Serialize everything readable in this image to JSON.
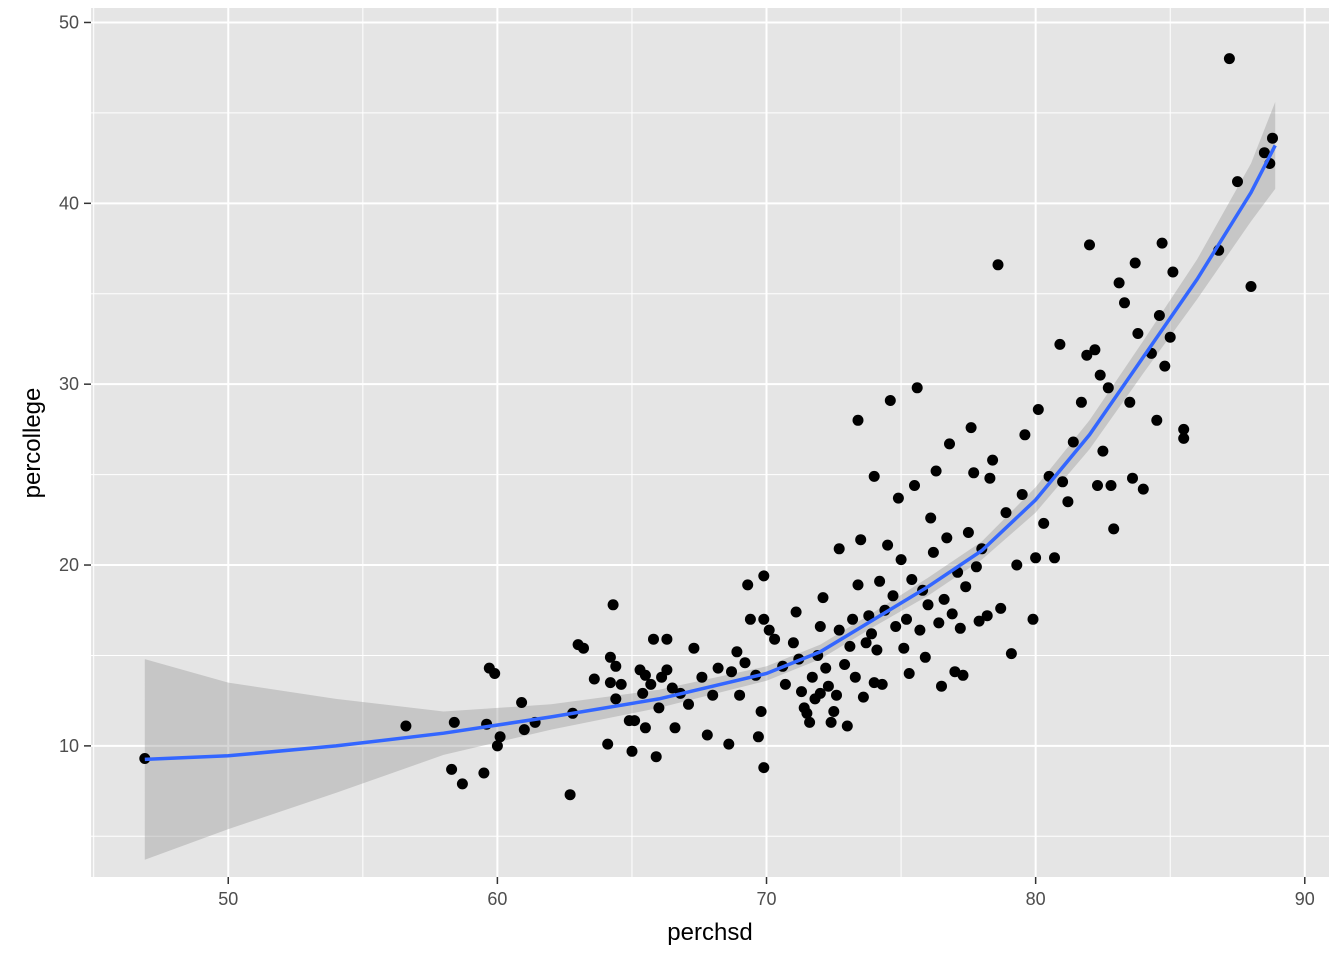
{
  "chart_data": {
    "type": "scatter",
    "title": "",
    "xlabel": "perchsd",
    "ylabel": "percollege",
    "xlim": [
      44.9,
      90.9
    ],
    "ylim": [
      2.75,
      50.8
    ],
    "x_ticks": [
      50,
      60,
      70,
      80,
      90
    ],
    "y_ticks": [
      10,
      20,
      30,
      40,
      50
    ],
    "x_tick_labels": [
      "50",
      "60",
      "70",
      "80",
      "90"
    ],
    "y_tick_labels": [
      "10",
      "20",
      "30",
      "40",
      "50"
    ],
    "grid": true,
    "legend": "none",
    "colors": {
      "panel": "#e5e5e5",
      "grid": "#ffffff",
      "points": "#000000",
      "smooth_line": "#3366ff",
      "ribbon": "#999999"
    },
    "points": [
      [
        46.9,
        9.3
      ],
      [
        56.6,
        11.1
      ],
      [
        58.3,
        8.7
      ],
      [
        58.4,
        11.3
      ],
      [
        58.7,
        7.9
      ],
      [
        59.5,
        8.5
      ],
      [
        59.6,
        11.2
      ],
      [
        59.7,
        14.3
      ],
      [
        59.9,
        14.0
      ],
      [
        60.0,
        10.0
      ],
      [
        60.1,
        10.5
      ],
      [
        60.9,
        12.4
      ],
      [
        61.0,
        10.9
      ],
      [
        61.4,
        11.3
      ],
      [
        62.7,
        7.3
      ],
      [
        62.8,
        11.8
      ],
      [
        63.0,
        15.6
      ],
      [
        63.2,
        15.4
      ],
      [
        63.6,
        13.7
      ],
      [
        64.1,
        10.1
      ],
      [
        64.2,
        13.5
      ],
      [
        64.2,
        14.9
      ],
      [
        64.3,
        17.8
      ],
      [
        64.4,
        12.6
      ],
      [
        64.4,
        14.4
      ],
      [
        64.6,
        13.4
      ],
      [
        64.9,
        11.4
      ],
      [
        65.0,
        9.7
      ],
      [
        65.1,
        11.4
      ],
      [
        65.3,
        14.2
      ],
      [
        65.4,
        12.9
      ],
      [
        65.5,
        11.0
      ],
      [
        65.5,
        13.9
      ],
      [
        65.7,
        13.4
      ],
      [
        65.8,
        15.9
      ],
      [
        65.9,
        9.4
      ],
      [
        66.0,
        12.1
      ],
      [
        66.1,
        13.8
      ],
      [
        66.3,
        14.2
      ],
      [
        66.3,
        15.9
      ],
      [
        66.5,
        13.2
      ],
      [
        66.6,
        11.0
      ],
      [
        66.8,
        12.9
      ],
      [
        67.1,
        12.3
      ],
      [
        67.3,
        15.4
      ],
      [
        67.6,
        13.8
      ],
      [
        67.8,
        10.6
      ],
      [
        68.0,
        12.8
      ],
      [
        68.2,
        14.3
      ],
      [
        68.6,
        10.1
      ],
      [
        68.7,
        14.1
      ],
      [
        68.9,
        15.2
      ],
      [
        69.0,
        12.8
      ],
      [
        69.2,
        14.6
      ],
      [
        69.3,
        18.9
      ],
      [
        69.4,
        17.0
      ],
      [
        69.6,
        13.9
      ],
      [
        69.7,
        10.5
      ],
      [
        69.8,
        11.9
      ],
      [
        69.9,
        8.8
      ],
      [
        69.9,
        17.0
      ],
      [
        69.9,
        19.4
      ],
      [
        70.1,
        16.4
      ],
      [
        70.3,
        15.9
      ],
      [
        70.6,
        14.4
      ],
      [
        70.7,
        13.4
      ],
      [
        71.0,
        15.7
      ],
      [
        71.1,
        17.4
      ],
      [
        71.2,
        14.8
      ],
      [
        71.3,
        13.0
      ],
      [
        71.4,
        12.1
      ],
      [
        71.5,
        11.8
      ],
      [
        71.6,
        11.3
      ],
      [
        71.7,
        13.8
      ],
      [
        71.8,
        12.6
      ],
      [
        71.9,
        15.0
      ],
      [
        72.0,
        12.9
      ],
      [
        72.0,
        16.6
      ],
      [
        72.1,
        18.2
      ],
      [
        72.2,
        14.3
      ],
      [
        72.3,
        13.3
      ],
      [
        72.4,
        11.3
      ],
      [
        72.5,
        11.9
      ],
      [
        72.6,
        12.8
      ],
      [
        72.7,
        16.4
      ],
      [
        72.7,
        20.9
      ],
      [
        72.9,
        14.5
      ],
      [
        73.0,
        11.1
      ],
      [
        73.1,
        15.5
      ],
      [
        73.2,
        17.0
      ],
      [
        73.3,
        13.8
      ],
      [
        73.4,
        18.9
      ],
      [
        73.4,
        28.0
      ],
      [
        73.5,
        21.4
      ],
      [
        73.6,
        12.7
      ],
      [
        73.7,
        15.7
      ],
      [
        73.8,
        17.2
      ],
      [
        73.9,
        16.2
      ],
      [
        74.0,
        13.5
      ],
      [
        74.0,
        24.9
      ],
      [
        74.1,
        15.3
      ],
      [
        74.2,
        19.1
      ],
      [
        74.3,
        13.4
      ],
      [
        74.4,
        17.5
      ],
      [
        74.5,
        21.1
      ],
      [
        74.6,
        29.1
      ],
      [
        74.7,
        18.3
      ],
      [
        74.8,
        16.6
      ],
      [
        74.9,
        23.7
      ],
      [
        75.0,
        20.3
      ],
      [
        75.1,
        15.4
      ],
      [
        75.2,
        17.0
      ],
      [
        75.3,
        14.0
      ],
      [
        75.4,
        19.2
      ],
      [
        75.5,
        24.4
      ],
      [
        75.6,
        29.8
      ],
      [
        75.7,
        16.4
      ],
      [
        75.8,
        18.6
      ],
      [
        75.9,
        14.9
      ],
      [
        76.0,
        17.8
      ],
      [
        76.1,
        22.6
      ],
      [
        76.2,
        20.7
      ],
      [
        76.3,
        25.2
      ],
      [
        76.4,
        16.8
      ],
      [
        76.5,
        13.3
      ],
      [
        76.6,
        18.1
      ],
      [
        76.7,
        21.5
      ],
      [
        76.8,
        26.7
      ],
      [
        76.9,
        17.3
      ],
      [
        77.0,
        14.1
      ],
      [
        77.1,
        19.6
      ],
      [
        77.2,
        16.5
      ],
      [
        77.3,
        13.9
      ],
      [
        77.4,
        18.8
      ],
      [
        77.5,
        21.8
      ],
      [
        77.6,
        27.6
      ],
      [
        77.7,
        25.1
      ],
      [
        77.8,
        19.9
      ],
      [
        77.9,
        16.9
      ],
      [
        78.0,
        20.9
      ],
      [
        78.2,
        17.2
      ],
      [
        78.3,
        24.8
      ],
      [
        78.4,
        25.8
      ],
      [
        78.6,
        36.6
      ],
      [
        78.7,
        17.6
      ],
      [
        78.9,
        22.9
      ],
      [
        79.1,
        15.1
      ],
      [
        79.3,
        20.0
      ],
      [
        79.5,
        23.9
      ],
      [
        79.6,
        27.2
      ],
      [
        79.9,
        17.0
      ],
      [
        80.0,
        20.4
      ],
      [
        80.1,
        28.6
      ],
      [
        80.3,
        22.3
      ],
      [
        80.5,
        24.9
      ],
      [
        80.7,
        20.4
      ],
      [
        80.9,
        32.2
      ],
      [
        81.0,
        24.6
      ],
      [
        81.2,
        23.5
      ],
      [
        81.4,
        26.8
      ],
      [
        81.7,
        29.0
      ],
      [
        81.9,
        31.6
      ],
      [
        82.0,
        37.7
      ],
      [
        82.2,
        31.9
      ],
      [
        82.3,
        24.4
      ],
      [
        82.4,
        30.5
      ],
      [
        82.5,
        26.3
      ],
      [
        82.7,
        29.8
      ],
      [
        82.8,
        24.4
      ],
      [
        82.9,
        22.0
      ],
      [
        83.1,
        35.6
      ],
      [
        83.3,
        34.5
      ],
      [
        83.5,
        29.0
      ],
      [
        83.6,
        24.8
      ],
      [
        83.7,
        36.7
      ],
      [
        83.8,
        32.8
      ],
      [
        84.0,
        24.2
      ],
      [
        84.3,
        31.7
      ],
      [
        84.5,
        28.0
      ],
      [
        84.6,
        33.8
      ],
      [
        84.7,
        37.8
      ],
      [
        84.8,
        31.0
      ],
      [
        85.0,
        32.6
      ],
      [
        85.1,
        36.2
      ],
      [
        85.5,
        27.0
      ],
      [
        85.5,
        27.5
      ],
      [
        86.8,
        37.4
      ],
      [
        87.2,
        48.0
      ],
      [
        87.5,
        41.2
      ],
      [
        88.0,
        35.4
      ],
      [
        88.5,
        42.8
      ],
      [
        88.7,
        42.2
      ],
      [
        88.8,
        43.6
      ]
    ],
    "smooth": {
      "method": "loess",
      "fit": [
        [
          46.9,
          9.25
        ],
        [
          50,
          9.45
        ],
        [
          54,
          10.0
        ],
        [
          58,
          10.7
        ],
        [
          62,
          11.6
        ],
        [
          66,
          12.6
        ],
        [
          70,
          14.0
        ],
        [
          72,
          15.2
        ],
        [
          74,
          17.0
        ],
        [
          76,
          18.8
        ],
        [
          78,
          20.8
        ],
        [
          80,
          23.6
        ],
        [
          82,
          27.2
        ],
        [
          84,
          31.5
        ],
        [
          86,
          35.8
        ],
        [
          88,
          40.6
        ],
        [
          88.9,
          43.2
        ]
      ],
      "lower": [
        [
          46.9,
          3.7
        ],
        [
          50,
          5.4
        ],
        [
          54,
          7.4
        ],
        [
          58,
          9.5
        ],
        [
          62,
          10.9
        ],
        [
          66,
          12.1
        ],
        [
          70,
          13.6
        ],
        [
          72,
          14.8
        ],
        [
          74,
          16.6
        ],
        [
          76,
          18.3
        ],
        [
          78,
          20.3
        ],
        [
          80,
          22.9
        ],
        [
          82,
          26.4
        ],
        [
          84,
          30.6
        ],
        [
          86,
          34.7
        ],
        [
          88,
          39.0
        ],
        [
          88.9,
          40.8
        ]
      ],
      "upper": [
        [
          46.9,
          14.8
        ],
        [
          50,
          13.5
        ],
        [
          54,
          12.6
        ],
        [
          58,
          11.9
        ],
        [
          62,
          12.3
        ],
        [
          66,
          13.1
        ],
        [
          70,
          14.4
        ],
        [
          72,
          15.6
        ],
        [
          74,
          17.4
        ],
        [
          76,
          19.3
        ],
        [
          78,
          21.3
        ],
        [
          80,
          24.3
        ],
        [
          82,
          28.0
        ],
        [
          84,
          32.4
        ],
        [
          86,
          36.9
        ],
        [
          88,
          42.2
        ],
        [
          88.9,
          45.6
        ]
      ]
    }
  }
}
